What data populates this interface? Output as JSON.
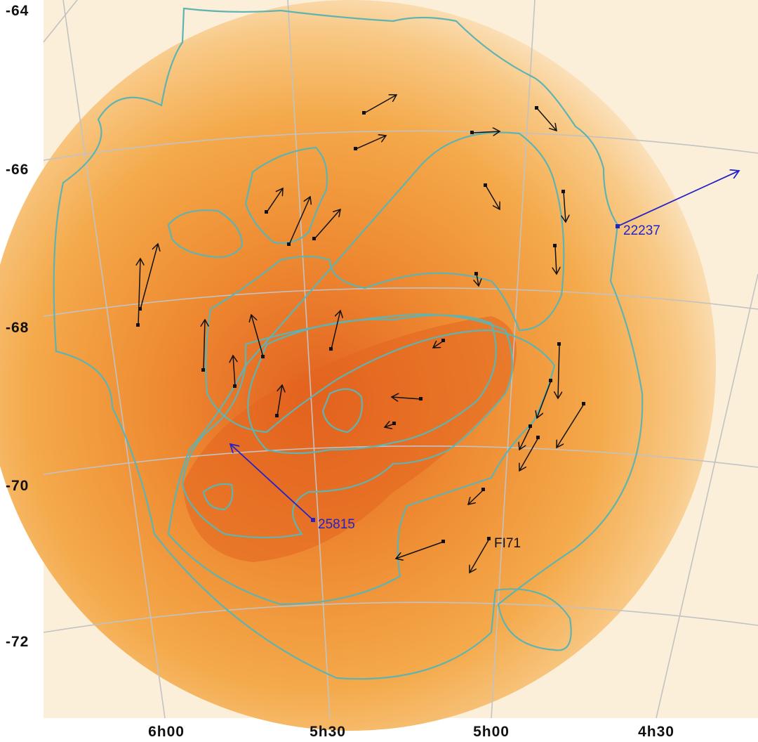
{
  "dec_labels": [
    "-64",
    "-66",
    "-68",
    "-70",
    "-72"
  ],
  "ra_labels": [
    "6h00",
    "5h30",
    "5h00",
    "4h30"
  ],
  "star_labels": [
    "22237",
    "25815",
    "FI71"
  ]
}
